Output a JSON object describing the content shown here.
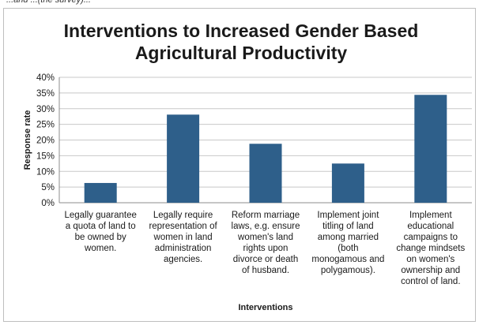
{
  "page_snippet": "...and ...(the survey)...",
  "chart_data": {
    "type": "bar",
    "title_lines": [
      "Interventions to Increased Gender Based",
      "Agricultural Productivity"
    ],
    "xlabel": "Interventions",
    "ylabel": "Response rate",
    "ylim": [
      0,
      0.4
    ],
    "ytick_values": [
      0,
      0.05,
      0.1,
      0.15,
      0.2,
      0.25,
      0.3,
      0.35,
      0.4
    ],
    "ytick_labels": [
      "0%",
      "5%",
      "10%",
      "15%",
      "20%",
      "25%",
      "30%",
      "35%",
      "40%"
    ],
    "gridlines": true,
    "legend": "none",
    "bar_color": "#2e5f8a",
    "categories": [
      [
        "Legally guarantee",
        "a quota of land to",
        "be owned by",
        "women."
      ],
      [
        "Legally require",
        "representation of",
        "women in land",
        "administration",
        "agencies."
      ],
      [
        "Reform marriage",
        "laws, e.g. ensure",
        "women's land",
        "rights upon",
        "divorce or death",
        "of husband."
      ],
      [
        "Implement joint",
        "titling of land",
        "among married",
        "(both",
        "monogamous and",
        "polygamous)."
      ],
      [
        "Implement",
        "educational",
        "campaigns to",
        "change mindsets",
        "on women's",
        "ownership and",
        "control of land."
      ]
    ],
    "values": [
      0.063,
      0.281,
      0.188,
      0.125,
      0.344
    ]
  }
}
